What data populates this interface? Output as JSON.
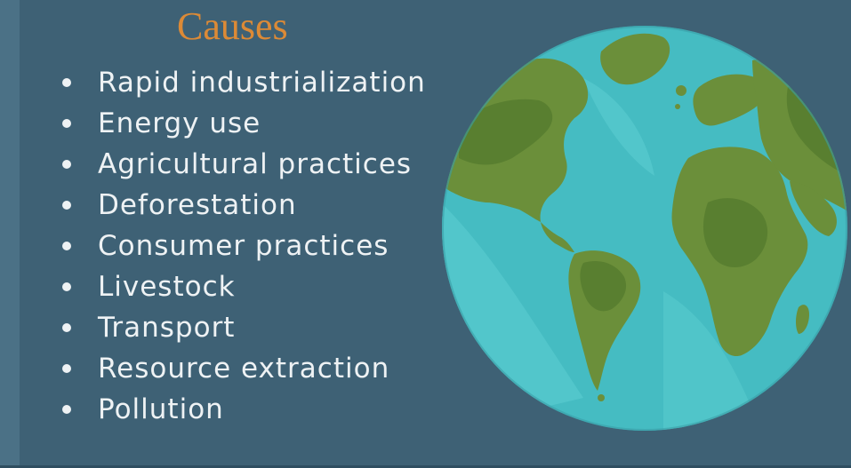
{
  "slide": {
    "title": "Causes",
    "causes": [
      "Rapid industrialization",
      "Energy use",
      "Agricultural practices",
      "Deforestation",
      "Consumer practices",
      "Livestock",
      "Transport",
      "Resource extraction",
      "Pollution"
    ],
    "globe_icon": "earth-globe-illustration",
    "colors": {
      "background": "#3e6175",
      "title": "#dc8a36",
      "text": "#eef2f4",
      "ocean": "#45bcc2",
      "land": "#6b8f3a"
    }
  }
}
